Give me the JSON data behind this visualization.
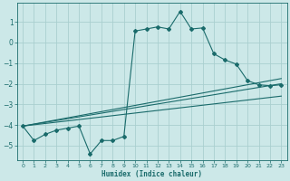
{
  "xlabel": "Humidex (Indice chaleur)",
  "background_color": "#cce8e8",
  "grid_color": "#aacfcf",
  "line_color": "#1a6b6b",
  "xlim": [
    -0.5,
    23.5
  ],
  "ylim": [
    -5.7,
    1.9
  ],
  "yticks": [
    1,
    0,
    -1,
    -2,
    -3,
    -4,
    -5
  ],
  "xticks": [
    0,
    1,
    2,
    3,
    4,
    5,
    6,
    7,
    8,
    9,
    10,
    11,
    12,
    13,
    14,
    15,
    16,
    17,
    18,
    19,
    20,
    21,
    22,
    23
  ],
  "main_x": [
    0,
    1,
    2,
    3,
    4,
    5,
    6,
    7,
    8,
    9,
    10,
    11,
    12,
    13,
    14,
    15,
    16,
    17,
    18,
    19,
    20,
    21,
    22,
    23
  ],
  "main_y": [
    -4.05,
    -4.75,
    -4.45,
    -4.25,
    -4.15,
    -4.05,
    -5.4,
    -4.75,
    -4.75,
    -4.55,
    0.55,
    0.65,
    0.75,
    0.65,
    1.5,
    0.65,
    0.7,
    -0.55,
    -0.85,
    -1.05,
    -1.85,
    -2.05,
    -2.1,
    -2.05
  ],
  "line1_x": [
    0,
    23
  ],
  "line1_y": [
    -4.05,
    -2.0
  ],
  "line2_x": [
    0,
    23
  ],
  "line2_y": [
    -4.05,
    -1.75
  ],
  "line3_x": [
    0,
    23
  ],
  "line3_y": [
    -4.05,
    -2.6
  ]
}
